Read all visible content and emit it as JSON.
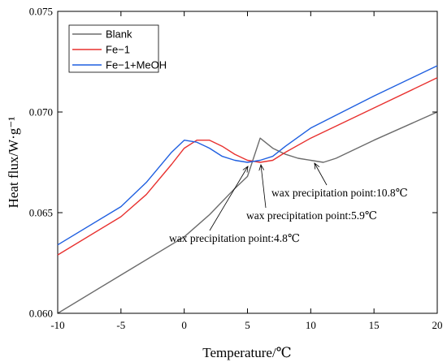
{
  "chart_data": {
    "type": "line",
    "xlabel": "Temperature/℃",
    "ylabel": "Heat flux/W·g⁻¹",
    "xlim": [
      -10,
      20
    ],
    "ylim": [
      0.06,
      0.075
    ],
    "xticks": [
      -10,
      -5,
      0,
      5,
      10,
      15,
      20
    ],
    "xtick_labels": [
      "-10",
      "-5",
      "0",
      "5",
      "10",
      "15",
      "20"
    ],
    "yticks": [
      0.06,
      0.065,
      0.07,
      0.075
    ],
    "ytick_labels": [
      "0.060",
      "0.065",
      "0.070",
      "0.075"
    ],
    "grid": false,
    "legend_position": "top-left",
    "series": [
      {
        "name": "Blank",
        "color": "#6b6b6b",
        "points": [
          [
            -10,
            0.06
          ],
          [
            -5,
            0.0619
          ],
          [
            0,
            0.0638
          ],
          [
            2,
            0.0649
          ],
          [
            4,
            0.0662
          ],
          [
            5,
            0.0668
          ],
          [
            6,
            0.0687
          ],
          [
            7,
            0.0682
          ],
          [
            8,
            0.0679
          ],
          [
            9,
            0.0677
          ],
          [
            10,
            0.0676
          ],
          [
            11,
            0.0675
          ],
          [
            12,
            0.0677
          ],
          [
            15,
            0.0686
          ],
          [
            20,
            0.07
          ]
        ]
      },
      {
        "name": "Fe−1",
        "color": "#e8312f",
        "points": [
          [
            -10,
            0.0629
          ],
          [
            -5,
            0.0648
          ],
          [
            -3,
            0.0659
          ],
          [
            -1,
            0.0674
          ],
          [
            0,
            0.0682
          ],
          [
            1,
            0.0686
          ],
          [
            2,
            0.0686
          ],
          [
            3,
            0.0683
          ],
          [
            4,
            0.0679
          ],
          [
            5,
            0.0676
          ],
          [
            6,
            0.0675
          ],
          [
            7,
            0.0676
          ],
          [
            8,
            0.068
          ],
          [
            10,
            0.0687
          ],
          [
            15,
            0.0702
          ],
          [
            20,
            0.0717
          ]
        ]
      },
      {
        "name": "Fe−1+MeOH",
        "color": "#1f5fe0",
        "points": [
          [
            -10,
            0.0634
          ],
          [
            -5,
            0.0653
          ],
          [
            -3,
            0.0665
          ],
          [
            -1,
            0.068
          ],
          [
            0,
            0.0686
          ],
          [
            1,
            0.0685
          ],
          [
            2,
            0.0682
          ],
          [
            3,
            0.0678
          ],
          [
            4,
            0.0676
          ],
          [
            5,
            0.0675
          ],
          [
            6,
            0.0676
          ],
          [
            7,
            0.0678
          ],
          [
            8,
            0.0683
          ],
          [
            10,
            0.0692
          ],
          [
            15,
            0.0708
          ],
          [
            20,
            0.0723
          ]
        ]
      }
    ],
    "annotations": [
      {
        "text": "wax precipitation point:10.8℃",
        "x": 10.8,
        "y": 0.0675
      },
      {
        "text": "wax precipitation point:5.9℃",
        "x": 5.9,
        "y": 0.0675
      },
      {
        "text": "wax precipitation point:4.8℃",
        "x": 4.8,
        "y": 0.0675
      }
    ]
  }
}
